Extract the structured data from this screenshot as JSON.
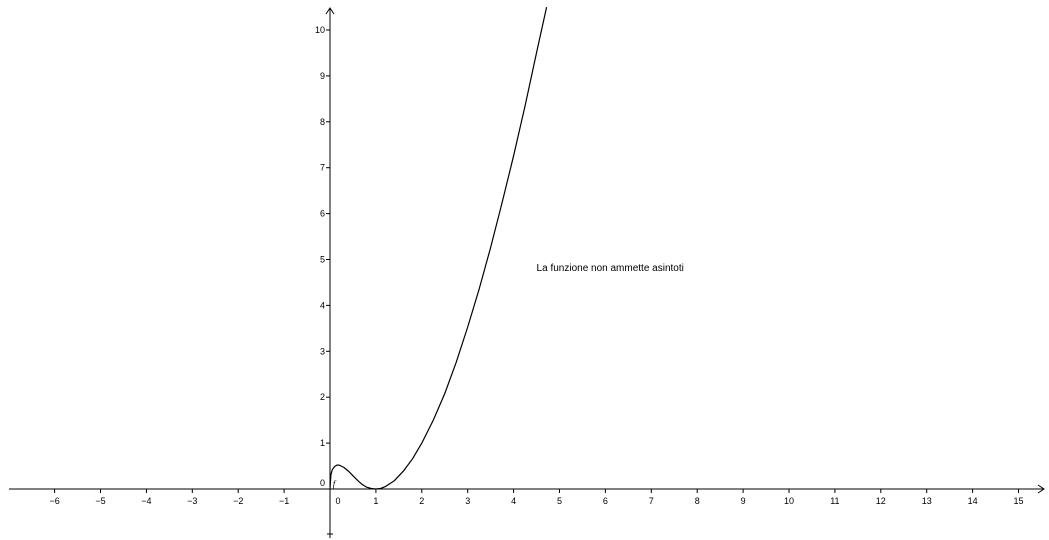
{
  "chart_data": {
    "type": "line",
    "title": "",
    "xlabel": "",
    "ylabel": "",
    "xlim": [
      -7.1,
      15.6
    ],
    "ylim": [
      -1.2,
      10.5
    ],
    "grid": false,
    "x_ticks": [
      -6,
      -5,
      -4,
      -3,
      -2,
      -1,
      0,
      1,
      2,
      3,
      4,
      5,
      6,
      7,
      8,
      9,
      10,
      11,
      12,
      13,
      14,
      15
    ],
    "y_ticks": [
      0,
      1,
      2,
      3,
      4,
      5,
      6,
      7,
      8,
      9,
      10
    ],
    "series": [
      {
        "name": "f",
        "color": "#000000",
        "points": [
          [
            0.0,
            0.0
          ],
          [
            0.02,
            0.31
          ],
          [
            0.05,
            0.42
          ],
          [
            0.1,
            0.49
          ],
          [
            0.15,
            0.52
          ],
          [
            0.2,
            0.52
          ],
          [
            0.3,
            0.47
          ],
          [
            0.4,
            0.39
          ],
          [
            0.5,
            0.29
          ],
          [
            0.6,
            0.19
          ],
          [
            0.7,
            0.1
          ],
          [
            0.8,
            0.04
          ],
          [
            0.9,
            0.01
          ],
          [
            1.0,
            0.0
          ],
          [
            1.1,
            0.01
          ],
          [
            1.2,
            0.05
          ],
          [
            1.4,
            0.18
          ],
          [
            1.6,
            0.39
          ],
          [
            1.8,
            0.66
          ],
          [
            2.0,
            1.0
          ],
          [
            2.25,
            1.5
          ],
          [
            2.5,
            2.08
          ],
          [
            2.75,
            2.76
          ],
          [
            3.0,
            3.53
          ],
          [
            3.25,
            4.36
          ],
          [
            3.5,
            5.26
          ],
          [
            3.75,
            6.24
          ],
          [
            4.0,
            7.26
          ],
          [
            4.25,
            8.35
          ],
          [
            4.5,
            9.5
          ],
          [
            4.72,
            10.5
          ]
        ]
      }
    ],
    "annotations": [
      {
        "text": "La funzione non ammette asintoti",
        "x": 4.5,
        "y": 4.75
      }
    ]
  },
  "icons": {
    "x_axis_arrow": "arrow-right-icon",
    "y_axis_arrow": "arrow-up-icon"
  }
}
